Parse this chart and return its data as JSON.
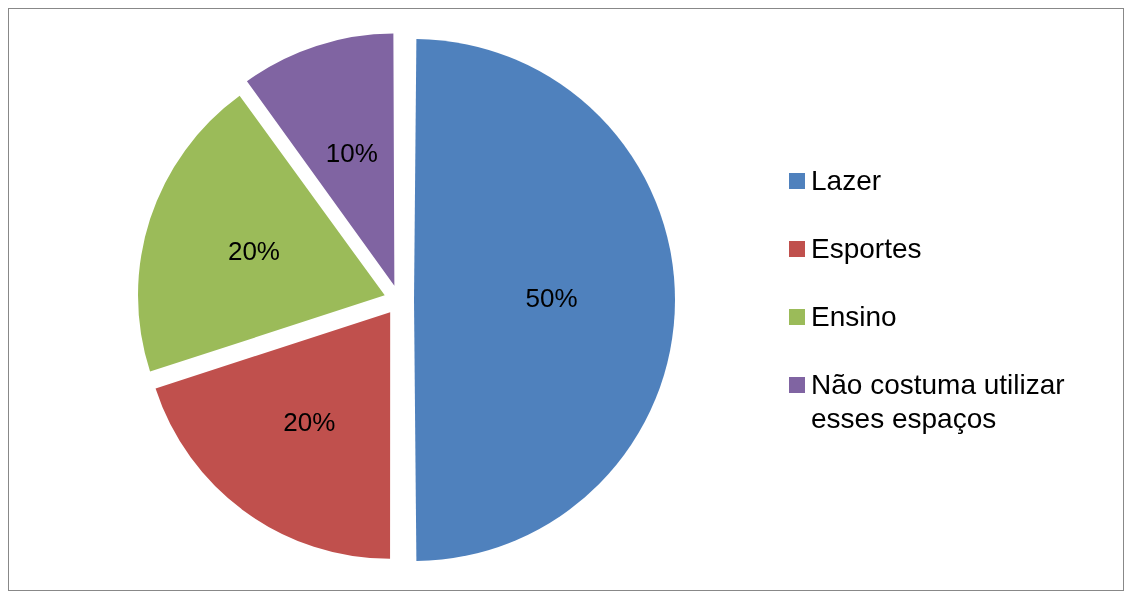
{
  "chart_data": {
    "type": "pie",
    "categories": [
      "Lazer",
      "Esportes",
      "Ensino",
      "Não costuma utilizar esses espaços"
    ],
    "values": [
      50,
      20,
      20,
      10
    ],
    "colors": [
      "#4f81bd",
      "#c0504d",
      "#9bbb59",
      "#8064a2"
    ],
    "value_labels": [
      "50%",
      "20%",
      "20%",
      "10%"
    ],
    "legend": "right"
  }
}
